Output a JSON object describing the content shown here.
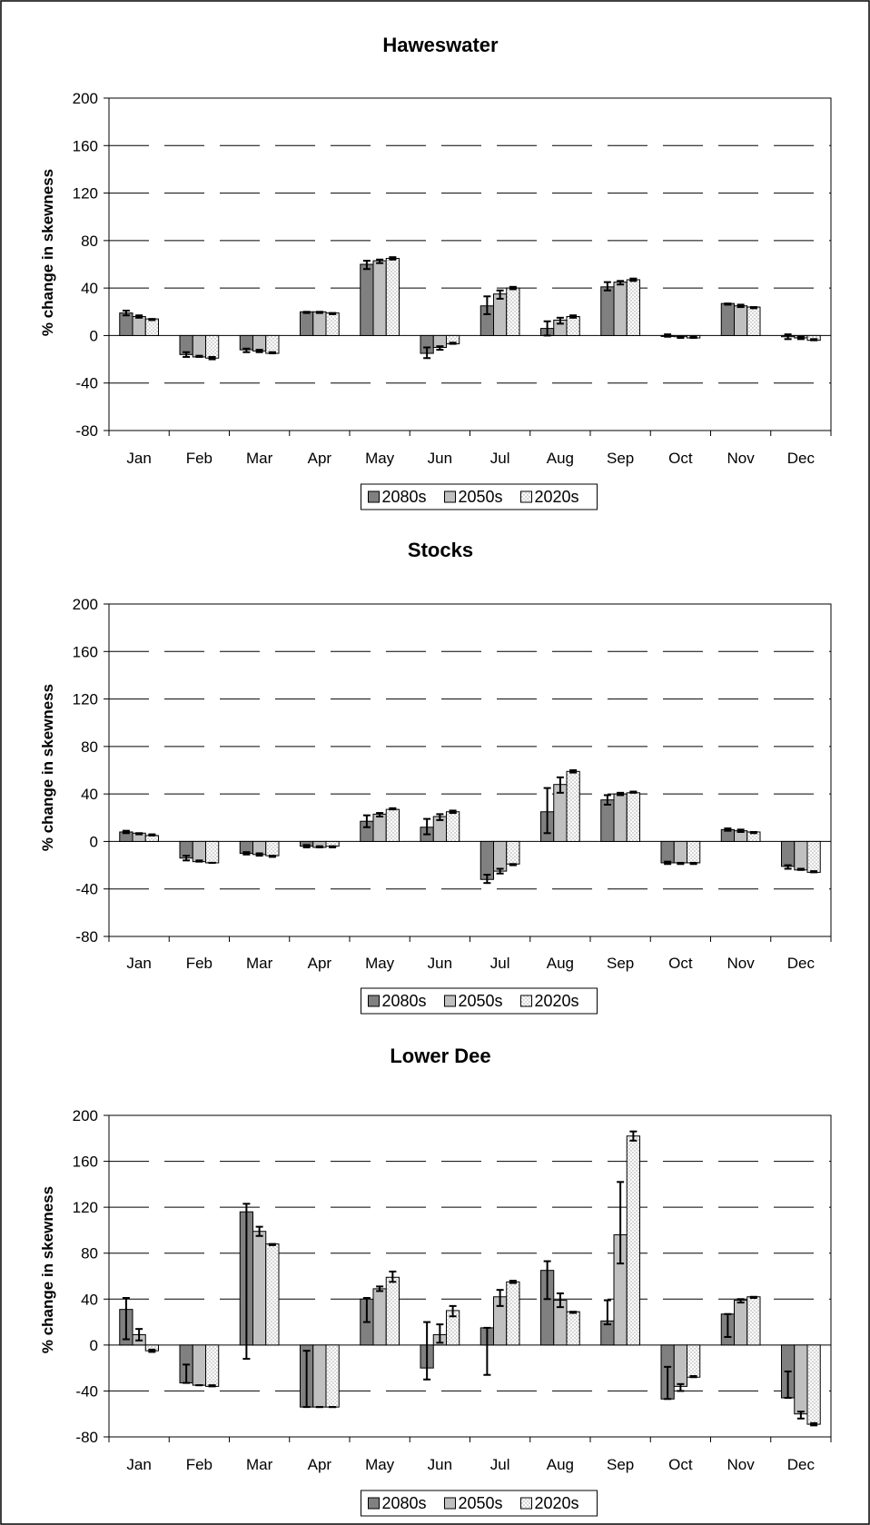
{
  "colors": {
    "s2080": "#808080",
    "s2050": "#c0c0c0",
    "s2020": "#ffffff",
    "dot": "#9a9a9a",
    "axis": "#000000",
    "grid": "#000000"
  },
  "chart_data": [
    {
      "type": "bar",
      "title": "Haweswater",
      "ylabel": "% change in skewness",
      "xlabel": "",
      "ylim": [
        -80,
        200
      ],
      "yticks": [
        -80,
        -40,
        0,
        40,
        80,
        120,
        160,
        200
      ],
      "grid": true,
      "legend": "bottom",
      "categories": [
        "Jan",
        "Feb",
        "Mar",
        "Apr",
        "May",
        "Jun",
        "Jul",
        "Aug",
        "Sep",
        "Oct",
        "Nov",
        "Dec"
      ],
      "series": [
        {
          "name": "2080s",
          "values": [
            19,
            -16,
            -12,
            20,
            60,
            -15,
            25,
            6,
            41,
            0,
            27,
            -1
          ],
          "error_low": [
            17,
            -18,
            -14,
            19,
            56,
            -19,
            18,
            0,
            38,
            -1,
            26,
            -3
          ],
          "error_high": [
            21,
            -14,
            -11,
            20,
            63,
            -10,
            33,
            12,
            45,
            1,
            27,
            1
          ]
        },
        {
          "name": "2050s",
          "values": [
            16,
            -18,
            -13,
            20,
            63,
            -10,
            35,
            13,
            45,
            -1,
            25,
            -2
          ],
          "error_low": [
            15,
            -18,
            -14,
            19,
            61,
            -12,
            31,
            10,
            43,
            -2,
            24,
            -3
          ],
          "error_high": [
            17,
            -17,
            -12,
            20,
            64,
            -9,
            38,
            15,
            46,
            -1,
            26,
            -1
          ],
          "fill": "light"
        },
        {
          "name": "2020s",
          "values": [
            14,
            -19,
            -15,
            19,
            65,
            -7,
            40,
            16,
            47,
            -2,
            24,
            -4
          ],
          "error_low": [
            13,
            -20,
            -15,
            18,
            64,
            -7,
            39,
            15,
            46,
            -2,
            23,
            -4
          ],
          "error_high": [
            14,
            -18,
            -14,
            19,
            66,
            -6,
            41,
            17,
            48,
            -1,
            24,
            -3
          ]
        }
      ]
    },
    {
      "type": "bar",
      "title": "Stocks",
      "ylabel": "% change in skewness",
      "xlabel": "",
      "ylim": [
        -80,
        200
      ],
      "yticks": [
        -80,
        -40,
        0,
        40,
        80,
        120,
        160,
        200
      ],
      "grid": true,
      "legend": "bottom",
      "categories": [
        "Jan",
        "Feb",
        "Mar",
        "Apr",
        "May",
        "Jun",
        "Jul",
        "Aug",
        "Sep",
        "Oct",
        "Nov",
        "Dec"
      ],
      "series": [
        {
          "name": "2080s",
          "values": [
            8,
            -14,
            -10,
            -4,
            17,
            12,
            -32,
            25,
            35,
            -18,
            10,
            -21
          ],
          "error_low": [
            7,
            -16,
            -11,
            -5,
            12,
            6,
            -35,
            7,
            31,
            -19,
            9,
            -23
          ],
          "error_high": [
            9,
            -12,
            -9,
            -3,
            22,
            19,
            -28,
            45,
            39,
            -17,
            11,
            -20
          ]
        },
        {
          "name": "2050s",
          "values": [
            7,
            -17,
            -11,
            -5,
            23,
            21,
            -25,
            48,
            40,
            -18,
            9,
            -24
          ],
          "error_low": [
            6,
            -17,
            -12,
            -5,
            21,
            18,
            -27,
            41,
            39,
            -19,
            8,
            -24
          ],
          "error_high": [
            7,
            -16,
            -10,
            -4,
            24,
            23,
            -23,
            54,
            41,
            -18,
            10,
            -23
          ]
        },
        {
          "name": "2020s",
          "values": [
            5,
            -18,
            -12,
            -4,
            27,
            25,
            -19,
            59,
            41,
            -18,
            8,
            -26
          ],
          "error_low": [
            5,
            -18,
            -13,
            -5,
            27,
            24,
            -20,
            58,
            41,
            -19,
            7,
            -26
          ],
          "error_high": [
            6,
            -18,
            -12,
            -4,
            28,
            26,
            -19,
            60,
            42,
            -18,
            8,
            -25
          ]
        }
      ]
    },
    {
      "type": "bar",
      "title": "Lower Dee",
      "ylabel": "% change in skewness",
      "xlabel": "",
      "ylim": [
        -80,
        200
      ],
      "yticks": [
        -80,
        -40,
        0,
        40,
        80,
        120,
        160,
        200
      ],
      "grid": true,
      "legend": "bottom",
      "categories": [
        "Jan",
        "Feb",
        "Mar",
        "Apr",
        "May",
        "Jun",
        "Jul",
        "Aug",
        "Sep",
        "Oct",
        "Nov",
        "Dec"
      ],
      "series": [
        {
          "name": "2080s",
          "values": [
            31,
            -33,
            116,
            -54,
            40,
            -20,
            15,
            65,
            21,
            -47,
            27,
            -46
          ],
          "error_low": [
            5,
            -33,
            -12,
            -54,
            20,
            -30,
            -26,
            40,
            18,
            -47,
            7,
            -46
          ],
          "error_high": [
            41,
            -17,
            123,
            -5,
            41,
            20,
            15,
            73,
            39,
            -19,
            27,
            -23
          ]
        },
        {
          "name": "2050s",
          "values": [
            9,
            -35,
            99,
            -54,
            49,
            9,
            42,
            39,
            96,
            -36,
            39,
            -60
          ],
          "error_low": [
            4,
            -35,
            95,
            -54,
            47,
            2,
            34,
            33,
            71,
            -40,
            37,
            -64
          ],
          "error_high": [
            14,
            -35,
            103,
            -54,
            51,
            18,
            48,
            45,
            142,
            -34,
            40,
            -58
          ]
        },
        {
          "name": "2020s",
          "values": [
            -5,
            -36,
            88,
            -54,
            59,
            30,
            55,
            29,
            182,
            -28,
            42,
            -69
          ],
          "error_low": [
            -6,
            -36,
            87,
            -54,
            55,
            25,
            54,
            28,
            178,
            -28,
            41,
            -70
          ],
          "error_high": [
            -4,
            -35,
            88,
            -54,
            64,
            34,
            56,
            29,
            186,
            -27,
            42,
            -68
          ]
        }
      ]
    }
  ]
}
